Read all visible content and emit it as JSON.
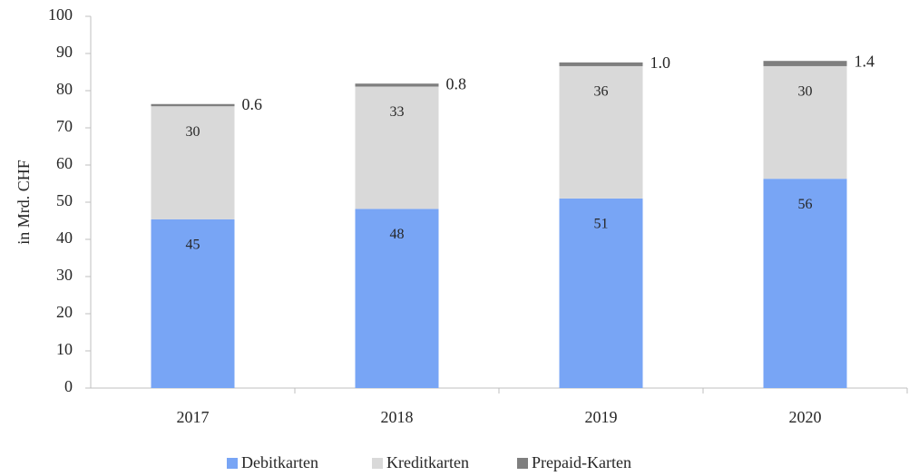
{
  "chart_data": {
    "type": "stacked_bar",
    "y_label": "in Mrd. CHF",
    "categories": [
      "2017",
      "2018",
      "2019",
      "2020"
    ],
    "series": [
      {
        "name": "Debitkarten",
        "color": "#78a5f5",
        "values": [
          45.4,
          48.2,
          51.0,
          56.3
        ],
        "value_labels": [
          "45",
          "48",
          "51",
          "56"
        ]
      },
      {
        "name": "Kreditkarten",
        "color": "#d9d9d9",
        "values": [
          30.4,
          32.9,
          35.6,
          30.3
        ],
        "value_labels": [
          "30",
          "33",
          "36",
          "30"
        ]
      },
      {
        "name": "Prepaid-Karten",
        "color": "#7f7f7f",
        "values": [
          0.6,
          0.8,
          1.0,
          1.4
        ],
        "value_labels": [
          "0.6",
          "0.8",
          "1.0",
          "1.4"
        ]
      }
    ],
    "ylim": [
      0,
      100
    ],
    "yticks": [
      0,
      10,
      20,
      30,
      40,
      50,
      60,
      70,
      80,
      90,
      100
    ],
    "grid": false,
    "legend": "bottom"
  }
}
